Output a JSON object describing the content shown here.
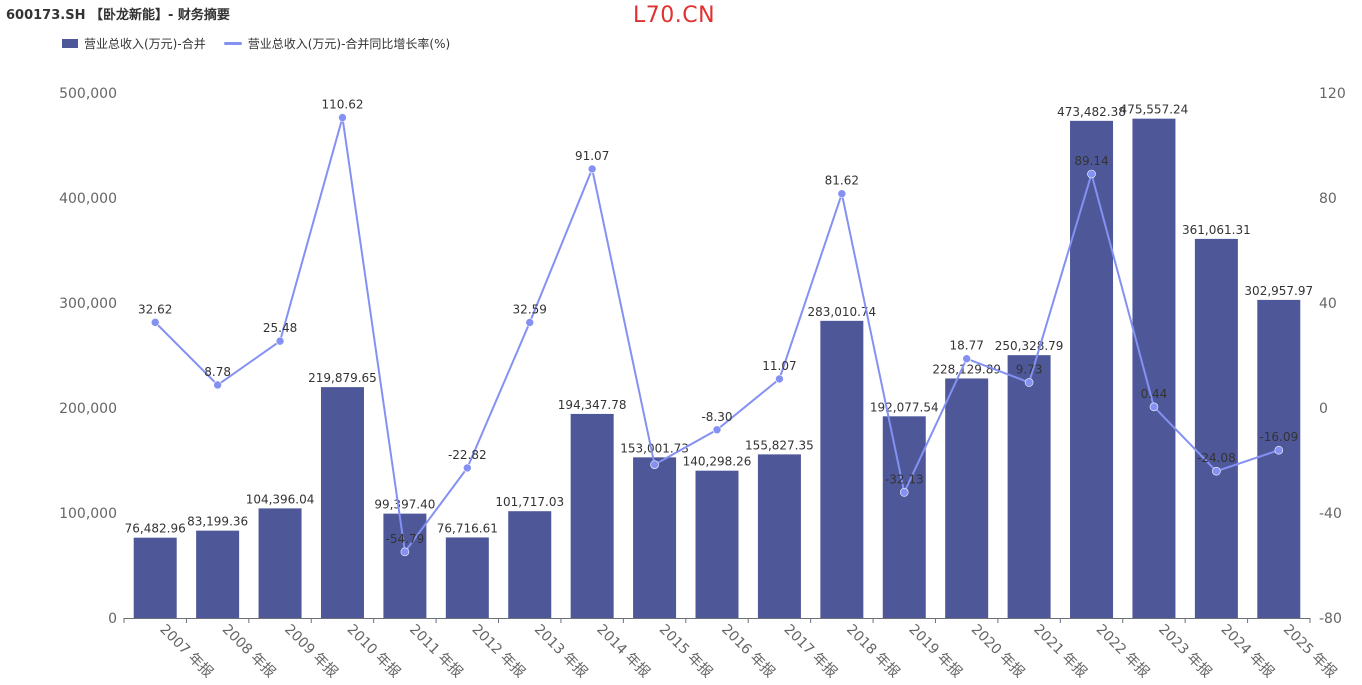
{
  "header": {
    "title": "600173.SH 【卧龙新能】- 财务摘要",
    "watermark": "L70.CN"
  },
  "colors": {
    "bar": "#4e5899",
    "line": "#8491f2",
    "axis_text": "#666666",
    "label_text": "#333333",
    "watermark": "#e03030"
  },
  "chart_data": {
    "type": "bar",
    "categories": [
      "2007 年报",
      "2008 年报",
      "2009 年报",
      "2010 年报",
      "2011 年报",
      "2012 年报",
      "2013 年报",
      "2014 年报",
      "2015 年报",
      "2016 年报",
      "2017 年报",
      "2018 年报",
      "2019 年报",
      "2020 年报",
      "2021 年报",
      "2022 年报",
      "2023 年报",
      "2024 年报",
      "2025 年报"
    ],
    "series": [
      {
        "name": "营业总收入(万元)-合并",
        "type": "bar",
        "axis": "left",
        "values": [
          76482.96,
          83199.36,
          104396.04,
          219879.65,
          99397.4,
          76716.61,
          101717.03,
          194347.78,
          153001.73,
          140298.26,
          155827.35,
          283010.74,
          192077.54,
          228129.89,
          250328.79,
          473482.38,
          475557.24,
          361061.31,
          302957.97
        ],
        "labels": [
          "76,482.96",
          "83,199.36",
          "104,396.04",
          "219,879.65",
          "99,397.40",
          "76,716.61",
          "101,717.03",
          "194,347.78",
          "153,001.73",
          "140,298.26",
          "155,827.35",
          "283,010.74",
          "192,077.54",
          "228,129.89",
          "250,328.79",
          "473,482.38",
          "475,557.24",
          "361,061.31",
          "302,957.97"
        ]
      },
      {
        "name": "营业总收入(万元)-合并同比增长率(%)",
        "type": "line",
        "axis": "right",
        "values": [
          32.62,
          8.78,
          25.48,
          110.62,
          -54.79,
          -22.82,
          32.59,
          91.07,
          -21.58,
          -8.3,
          11.07,
          81.62,
          -32.13,
          18.77,
          9.73,
          89.14,
          0.44,
          -24.08,
          -16.09
        ],
        "labels": [
          "32.62",
          "8.78",
          "25.48",
          "110.62",
          "-54.79",
          "-22.82",
          "32.59",
          "91.07",
          "",
          "-8.30",
          "11.07",
          "81.62",
          "-32.13",
          "18.77",
          "9.73",
          "89.14",
          "0.44",
          "-24.08",
          "-16.09"
        ]
      }
    ],
    "y_left": {
      "ylim": [
        0,
        500000
      ],
      "ticks": [
        0,
        100000,
        200000,
        300000,
        400000,
        500000
      ],
      "tick_labels": [
        "0",
        "100,000",
        "200,000",
        "300,000",
        "400,000",
        "500,000"
      ]
    },
    "y_right": {
      "ylim": [
        -80,
        120
      ],
      "ticks": [
        -80,
        -40,
        0,
        40,
        80,
        120
      ],
      "tick_labels": [
        "-80",
        "-40",
        "0",
        "40",
        "80",
        "120"
      ]
    },
    "legend_position": "top-left",
    "grid": false
  }
}
